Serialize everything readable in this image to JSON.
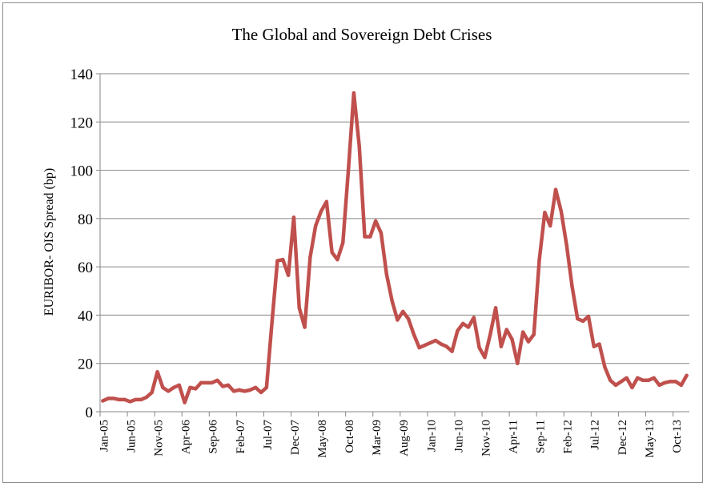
{
  "chart_data": {
    "type": "line",
    "title": "The Global and Sovereign Debt Crises",
    "xlabel": "",
    "ylabel": "EURIBOR- OIS Spread (bp)",
    "ylim": [
      0,
      140
    ],
    "yticks": [
      0,
      20,
      40,
      60,
      80,
      100,
      120,
      140
    ],
    "grid": true,
    "legend": "none",
    "line_color": "#C0504D",
    "x_tick_labels": [
      "Jan-05",
      "Jun-05",
      "Nov-05",
      "Apr-06",
      "Sep-06",
      "Feb-07",
      "Jul-07",
      "Dec-07",
      "May-08",
      "Oct-08",
      "Mar-09",
      "Aug-09",
      "Jan-10",
      "Jun-10",
      "Nov-10",
      "Apr-11",
      "Sep-11",
      "Feb-12",
      "Jul-12",
      "Dec-12",
      "May-13",
      "Oct-13"
    ],
    "x": [
      "Jan-05",
      "Feb-05",
      "Mar-05",
      "Apr-05",
      "May-05",
      "Jun-05",
      "Jul-05",
      "Aug-05",
      "Sep-05",
      "Oct-05",
      "Nov-05",
      "Dec-05",
      "Jan-06",
      "Feb-06",
      "Mar-06",
      "Apr-06",
      "May-06",
      "Jun-06",
      "Jul-06",
      "Aug-06",
      "Sep-06",
      "Oct-06",
      "Nov-06",
      "Dec-06",
      "Jan-07",
      "Feb-07",
      "Mar-07",
      "Apr-07",
      "May-07",
      "Jun-07",
      "Jul-07",
      "Aug-07",
      "Sep-07",
      "Oct-07",
      "Nov-07",
      "Dec-07",
      "Jan-08",
      "Feb-08",
      "Mar-08",
      "Apr-08",
      "May-08",
      "Jun-08",
      "Jul-08",
      "Aug-08",
      "Sep-08",
      "Oct-08",
      "Nov-08",
      "Dec-08",
      "Jan-09",
      "Feb-09",
      "Mar-09",
      "Apr-09",
      "May-09",
      "Jun-09",
      "Jul-09",
      "Aug-09",
      "Sep-09",
      "Oct-09",
      "Nov-09",
      "Dec-09",
      "Jan-10",
      "Feb-10",
      "Mar-10",
      "Apr-10",
      "May-10",
      "Jun-10",
      "Jul-10",
      "Aug-10",
      "Sep-10",
      "Oct-10",
      "Nov-10",
      "Dec-10",
      "Jan-11",
      "Feb-11",
      "Mar-11",
      "Apr-11",
      "May-11",
      "Jun-11",
      "Jul-11",
      "Aug-11",
      "Sep-11",
      "Oct-11",
      "Nov-11",
      "Dec-11",
      "Jan-12",
      "Feb-12",
      "Mar-12",
      "Apr-12",
      "May-12",
      "Jun-12",
      "Jul-12",
      "Aug-12",
      "Sep-12",
      "Oct-12",
      "Nov-12",
      "Dec-12",
      "Jan-13",
      "Feb-13",
      "Mar-13",
      "Apr-13",
      "May-13",
      "Jun-13",
      "Jul-13",
      "Aug-13",
      "Sep-13",
      "Oct-13",
      "Nov-13",
      "Dec-13"
    ],
    "series": [
      {
        "values": [
          4.5,
          5.5,
          5.5,
          5,
          5,
          4.2,
          5,
          5,
          6,
          8,
          16.5,
          10,
          8.5,
          10,
          11,
          3.8,
          10,
          9.5,
          12,
          12,
          12,
          13,
          10.5,
          11,
          8.5,
          9,
          8.5,
          9,
          10,
          8,
          10,
          37,
          62.5,
          63,
          56.5,
          80.5,
          43,
          35,
          64,
          77,
          83,
          87,
          66,
          63,
          70,
          100,
          132,
          110,
          72.5,
          72.5,
          79,
          74,
          57,
          46,
          38,
          41.5,
          38.5,
          32,
          26.5,
          27.5,
          28.5,
          29.5,
          28,
          27,
          25,
          33.5,
          36.5,
          35,
          39,
          26.5,
          22.5,
          32,
          43,
          27,
          34,
          30,
          20,
          33,
          29,
          32,
          63,
          82.5,
          77,
          92,
          83,
          69,
          52,
          38.5,
          37.5,
          39.5,
          27,
          28,
          18.5,
          13,
          11,
          12.5,
          14,
          10,
          14,
          13,
          13,
          14,
          11,
          12,
          12.5,
          12.5,
          11,
          15
        ]
      }
    ]
  }
}
